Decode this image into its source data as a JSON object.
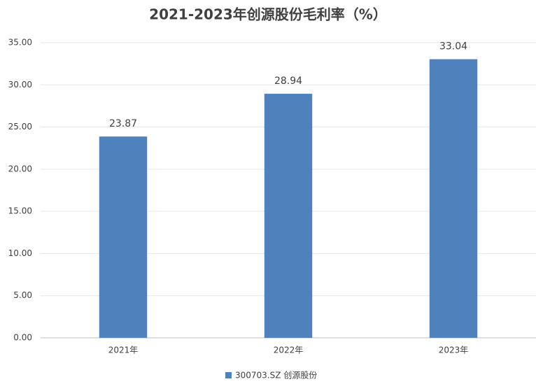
{
  "chart_data": {
    "type": "bar",
    "title": "2021-2023年创源股份毛利率（%）",
    "categories": [
      "2021年",
      "2022年",
      "2023年"
    ],
    "series": [
      {
        "name": "300703.SZ 创源股份",
        "color": "#4f81bd",
        "values": [
          23.87,
          28.94,
          33.04
        ]
      }
    ],
    "ylim": [
      0,
      35
    ],
    "yticks": [
      {
        "value": 0,
        "label": "0.00"
      },
      {
        "value": 5,
        "label": "5.00"
      },
      {
        "value": 10,
        "label": "10.00"
      },
      {
        "value": 15,
        "label": "15.00"
      },
      {
        "value": 20,
        "label": "20.00"
      },
      {
        "value": 25,
        "label": "25.00"
      },
      {
        "value": 30,
        "label": "30.00"
      },
      {
        "value": 35,
        "label": "35.00"
      }
    ],
    "grid": true,
    "legend": "bottom"
  }
}
